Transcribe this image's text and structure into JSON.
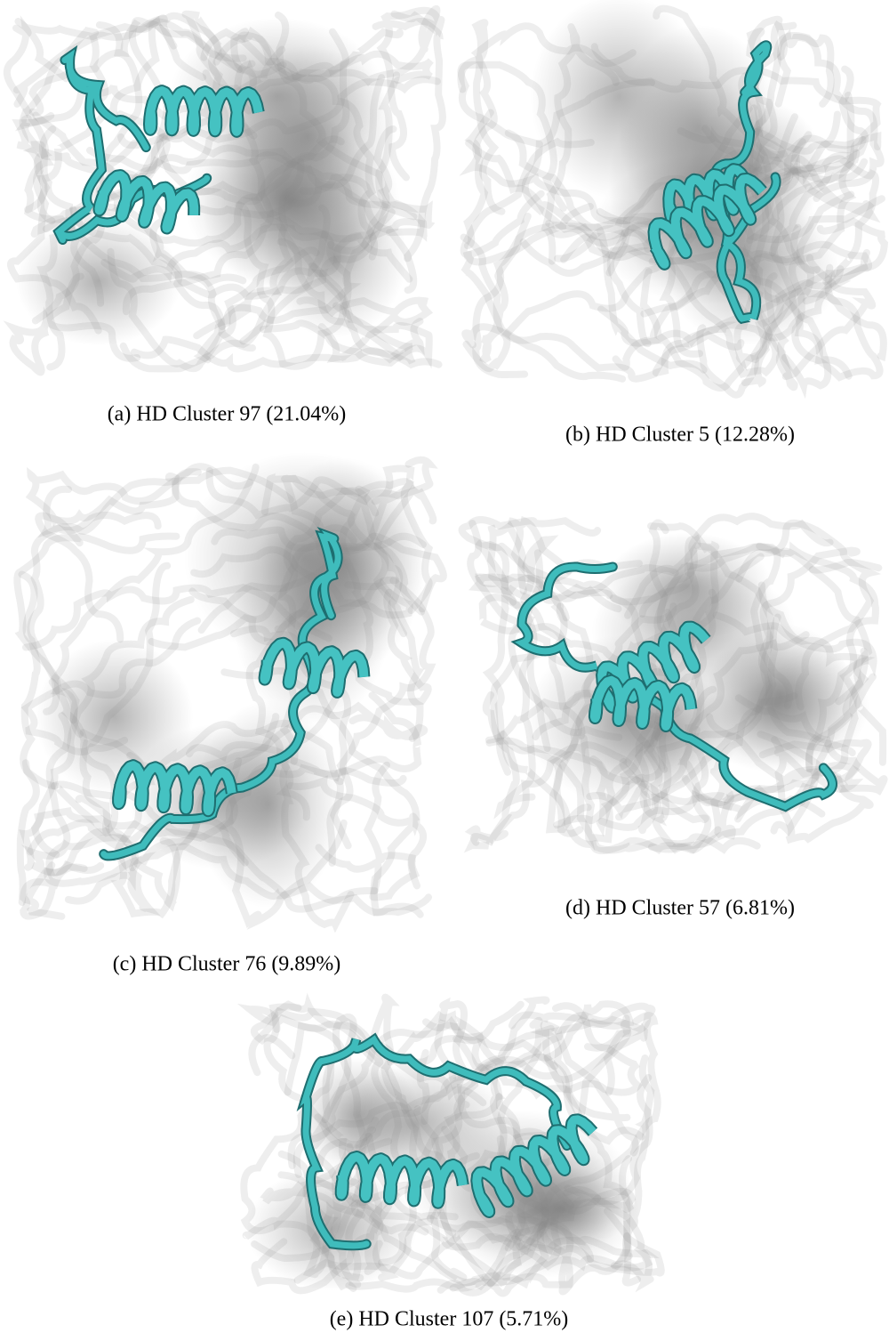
{
  "figures": [
    {
      "caption": "(a) HD Cluster 97 (21.04%)"
    },
    {
      "caption": "(b) HD Cluster 5 (12.28%)"
    },
    {
      "caption": "(c) HD Cluster 76 (9.89%)"
    },
    {
      "caption": "(d) HD Cluster 57 (6.81%)"
    },
    {
      "caption": "(e) HD Cluster 107 (5.71%)"
    }
  ]
}
